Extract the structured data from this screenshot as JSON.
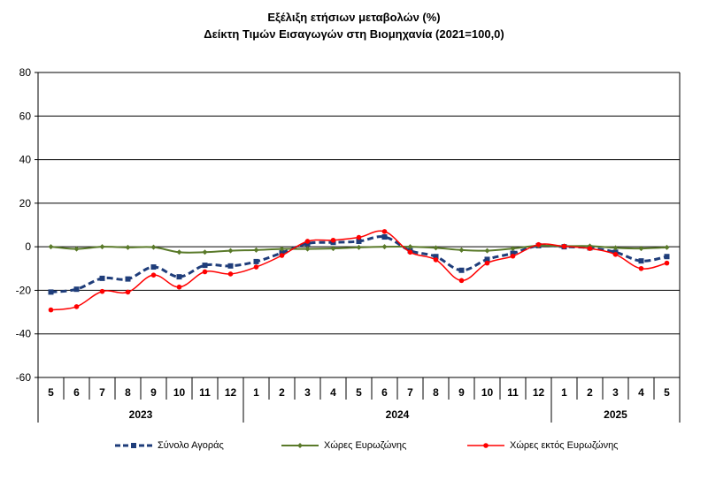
{
  "title_line1": "Εξέλιξη ετήσιων μεταβολών (%)",
  "title_line2": "Δείκτη Τιμών Εισαγωγών στη Βιομηχανία (2021=100,0)",
  "chart_data": {
    "type": "line",
    "categories": [
      "5",
      "6",
      "7",
      "8",
      "9",
      "10",
      "11",
      "12",
      "1",
      "2",
      "3",
      "4",
      "5",
      "6",
      "7",
      "8",
      "9",
      "10",
      "11",
      "12",
      "1",
      "2",
      "3",
      "4",
      "5"
    ],
    "year_groups": [
      {
        "label": "2023",
        "start": 0,
        "end": 7
      },
      {
        "label": "2024",
        "start": 8,
        "end": 19
      },
      {
        "label": "2025",
        "start": 20,
        "end": 24
      }
    ],
    "ylim": [
      -60,
      80
    ],
    "yticks": [
      80,
      60,
      40,
      20,
      0,
      -20,
      -40,
      -60
    ],
    "grid": true,
    "legend_position": "bottom",
    "series": [
      {
        "name": "Σύνολο Αγοράς",
        "color": "#1F3D7A",
        "style": "dashed-square",
        "values": [
          -20.8,
          -19.5,
          -14.5,
          -14.8,
          -9.3,
          -13.8,
          -8.5,
          -8.8,
          -6.8,
          -2.8,
          1.5,
          2.0,
          2.5,
          4.5,
          -1.8,
          -4.5,
          -10.8,
          -5.8,
          -3.0,
          0.5,
          0.0,
          -0.5,
          -2.5,
          -6.5,
          -4.5
        ]
      },
      {
        "name": "Χώρες Ευρωζώνης",
        "color": "#5A7A2A",
        "style": "solid-diamond",
        "values": [
          0.0,
          -1.0,
          0.0,
          -0.3,
          -0.2,
          -2.5,
          -2.5,
          -1.8,
          -1.5,
          -1.0,
          -1.0,
          -0.8,
          -0.3,
          0.0,
          0.0,
          -0.5,
          -1.5,
          -1.8,
          -0.8,
          0.5,
          0.3,
          0.3,
          -0.5,
          -0.8,
          -0.3
        ]
      },
      {
        "name": "Χώρες εκτός Ευρωζώνης",
        "color": "#FF0000",
        "style": "solid-circle",
        "values": [
          -29.0,
          -27.5,
          -20.5,
          -20.8,
          -13.0,
          -18.5,
          -11.5,
          -12.5,
          -9.3,
          -4.0,
          2.5,
          3.0,
          4.3,
          7.0,
          -2.5,
          -6.0,
          -15.5,
          -7.5,
          -4.3,
          1.0,
          0.2,
          -0.8,
          -3.5,
          -10.0,
          -7.5
        ]
      }
    ]
  }
}
